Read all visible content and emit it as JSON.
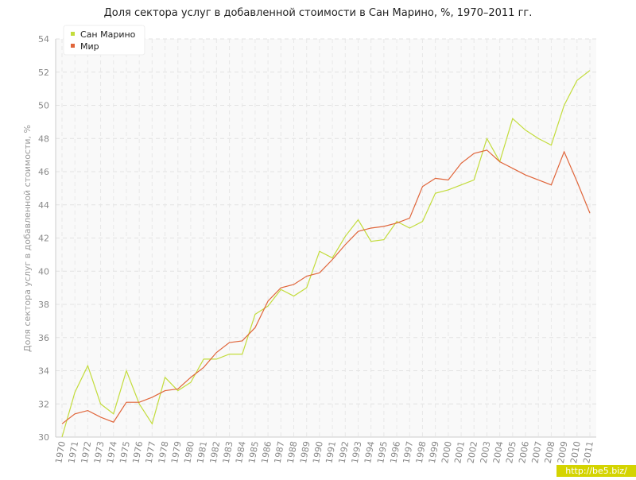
{
  "chart_data": {
    "type": "line",
    "title": "Доля сектора услуг в добавленной стоимости в Сан Марино, %, 1970–2011 гг.",
    "y_label": "Доля сектора услуг в добавленной стоимости, %",
    "categories": [
      "1970",
      "1971",
      "1972",
      "1973",
      "1974",
      "1975",
      "1976",
      "1977",
      "1978",
      "1979",
      "1980",
      "1981",
      "1982",
      "1983",
      "1984",
      "1985",
      "1986",
      "1987",
      "1988",
      "1989",
      "1990",
      "1991",
      "1992",
      "1993",
      "1994",
      "1995",
      "1996",
      "1997",
      "1998",
      "1999",
      "2000",
      "2001",
      "2002",
      "2003",
      "2004",
      "2005",
      "2006",
      "2007",
      "2008",
      "2009",
      "2010",
      "2011"
    ],
    "series": [
      {
        "name": "Сан Марино",
        "color": "#c3dc3c",
        "values": [
          30.0,
          32.7,
          34.3,
          32.0,
          31.4,
          34.0,
          32.0,
          30.8,
          33.6,
          32.8,
          33.3,
          34.7,
          34.7,
          35.0,
          35.0,
          37.4,
          37.9,
          38.9,
          38.5,
          39.0,
          41.2,
          40.8,
          42.1,
          43.1,
          41.8,
          41.9,
          43.0,
          42.6,
          43.0,
          44.7,
          44.9,
          45.2,
          45.5,
          48.0,
          46.6,
          49.2,
          48.5,
          48.0,
          47.6,
          50.0,
          51.5,
          52.1
        ]
      },
      {
        "name": "Мир",
        "color": "#e0653a",
        "values": [
          30.8,
          31.4,
          31.6,
          31.2,
          30.9,
          32.1,
          32.1,
          32.4,
          32.8,
          32.9,
          33.6,
          34.2,
          35.1,
          35.7,
          35.8,
          36.6,
          38.2,
          39.0,
          39.2,
          39.7,
          39.9,
          40.7,
          41.6,
          42.4,
          42.6,
          42.7,
          42.9,
          43.2,
          45.1,
          45.6,
          45.5,
          46.5,
          47.1,
          47.3,
          46.6,
          46.2,
          45.8,
          45.5,
          45.2,
          47.2,
          45.4,
          43.5
        ]
      }
    ],
    "ylim": [
      30,
      54
    ],
    "yticks": [
      30,
      32,
      34,
      36,
      38,
      40,
      42,
      44,
      46,
      48,
      50,
      52,
      54
    ],
    "grid": true,
    "legend": "top-left",
    "watermark": "http://be5.biz/"
  }
}
